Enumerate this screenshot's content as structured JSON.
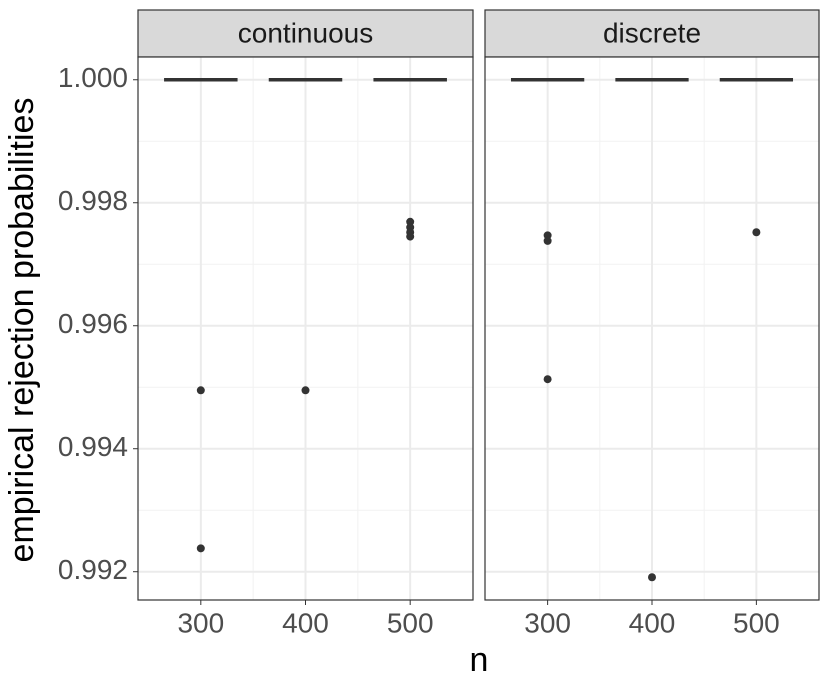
{
  "chart_data": {
    "type": "boxplot",
    "x_label": "n",
    "y_label": "empirical rejection probabilities",
    "xlim": [
      240,
      560
    ],
    "xticks": [
      300,
      400,
      500
    ],
    "x_minor_ticks": [
      350,
      450
    ],
    "ylim": [
      0.99154,
      1.00037
    ],
    "yticks": [
      0.992,
      0.994,
      0.996,
      0.998,
      {
        "value": 1,
        "label": "1.000"
      }
    ],
    "y_minor_ticks": [
      0.993,
      0.995,
      0.997,
      0.999
    ],
    "grid": true,
    "color": "#333333",
    "panels": [
      {
        "title": "continuous",
        "groups": [
          {
            "x": 300,
            "median": 1,
            "outliers": [
              0.99495,
              0.99238
            ]
          },
          {
            "x": 400,
            "median": 1,
            "outliers": [
              0.99495
            ]
          },
          {
            "x": 500,
            "median": 1,
            "outliers": [
              0.99769,
              0.9976,
              0.99752,
              0.99745
            ]
          }
        ]
      },
      {
        "title": "discrete",
        "groups": [
          {
            "x": 300,
            "median": 1,
            "outliers": [
              0.99747,
              0.99738,
              0.99513
            ]
          },
          {
            "x": 400,
            "median": 1,
            "outliers": [
              0.99191
            ]
          },
          {
            "x": 500,
            "median": 1,
            "outliers": [
              0.99752
            ]
          }
        ]
      }
    ]
  }
}
